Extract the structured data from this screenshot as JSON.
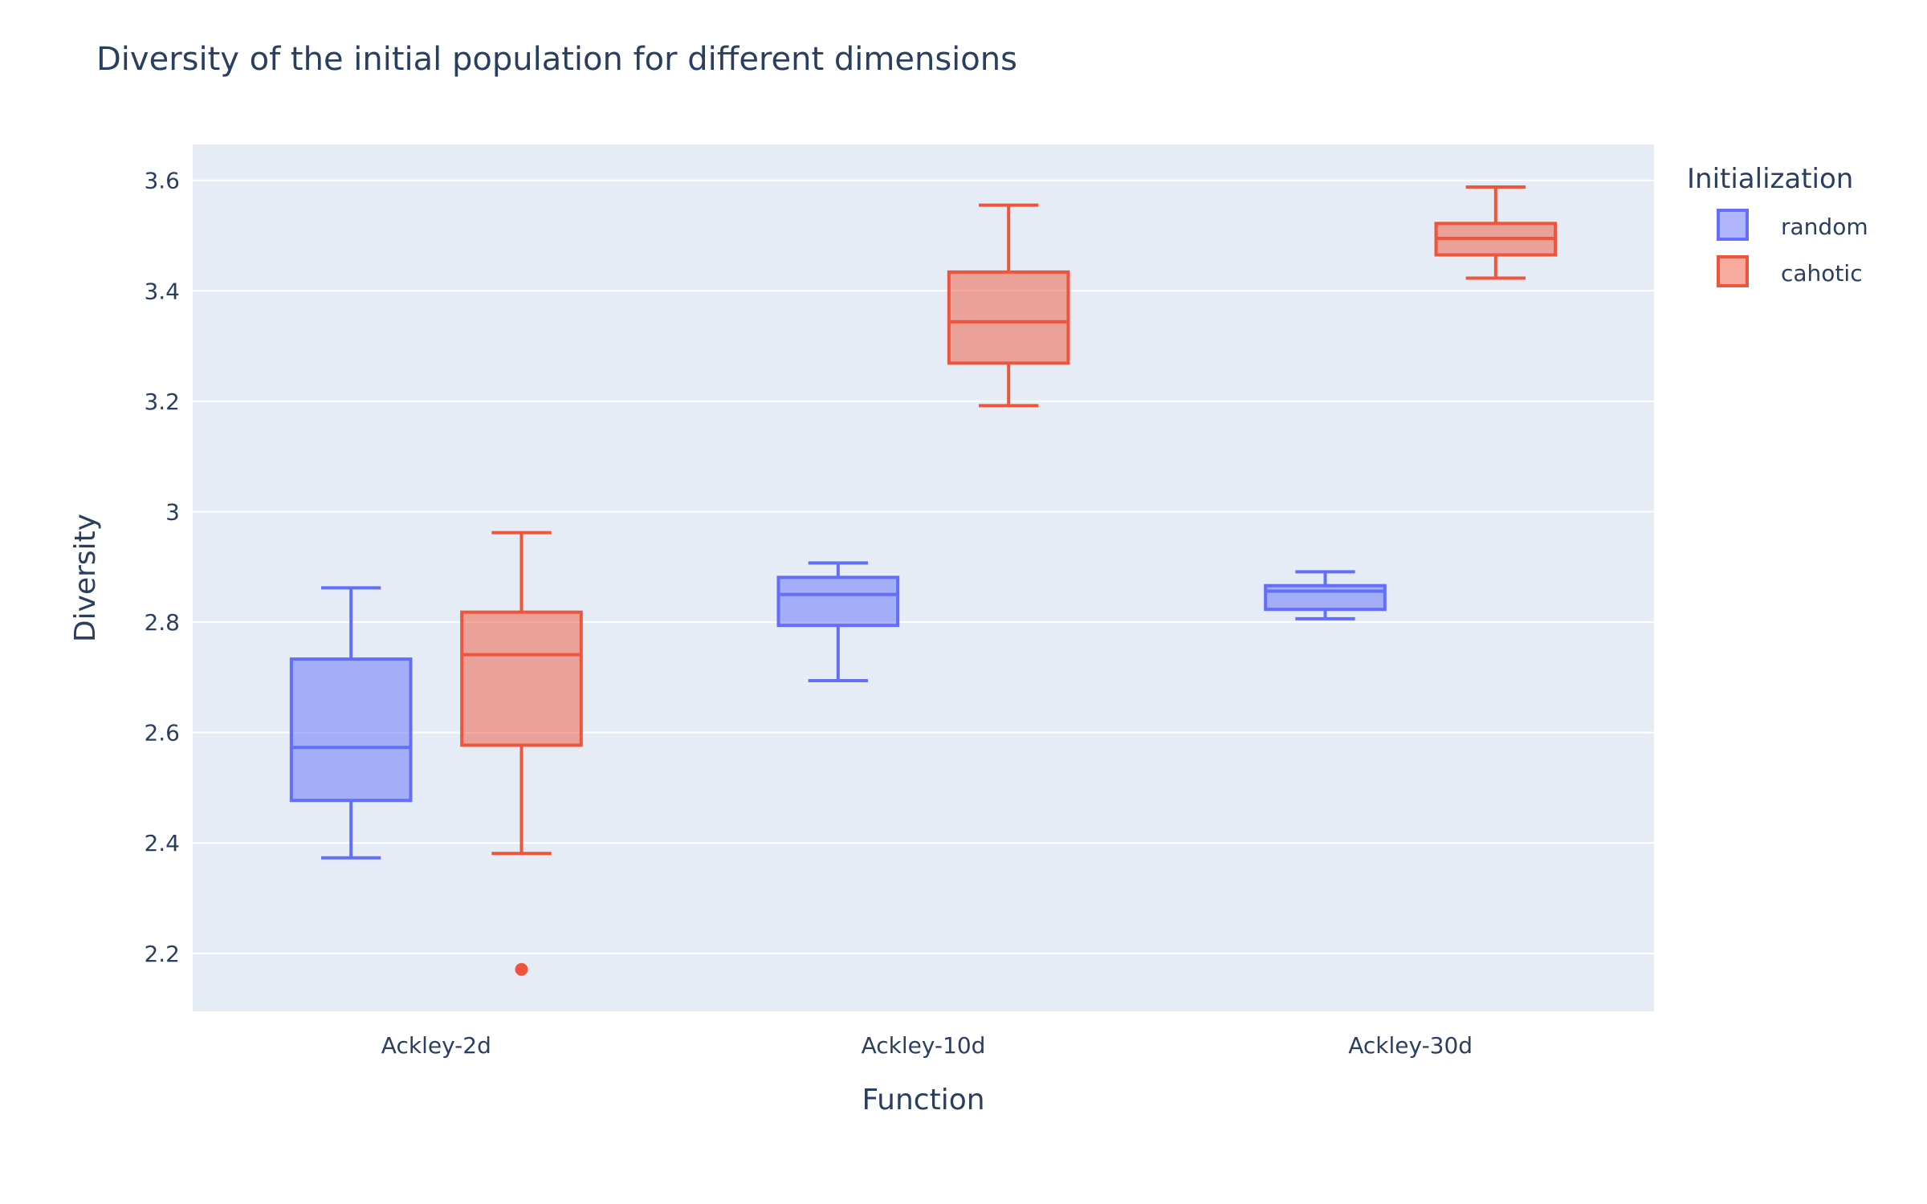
{
  "chart_data": {
    "type": "box",
    "title": "Diversity of the initial population for different dimensions",
    "xlabel": "Function",
    "ylabel": "Diversity",
    "categories": [
      "Ackley-2d",
      "Ackley-10d",
      "Ackley-30d"
    ],
    "ylim": [
      2.095,
      3.665
    ],
    "yticks": [
      2.2,
      2.4,
      2.6,
      2.8,
      3,
      3.2,
      3.4,
      3.6
    ],
    "ytick_labels": [
      "2.2",
      "2.4",
      "2.6",
      "2.8",
      "3",
      "3.2",
      "3.4",
      "3.6"
    ],
    "grid": true,
    "legend": {
      "title": "Initialization",
      "placement": "top-right"
    },
    "series": [
      {
        "name": "random",
        "color": "#636efa",
        "fill": "rgba(99,110,250,0.5)",
        "boxes": [
          {
            "min": 2.373,
            "q1": 2.477,
            "median": 2.573,
            "q3": 2.733,
            "max": 2.862,
            "outliers": []
          },
          {
            "min": 2.694,
            "q1": 2.794,
            "median": 2.85,
            "q3": 2.881,
            "max": 2.907,
            "outliers": []
          },
          {
            "min": 2.806,
            "q1": 2.823,
            "median": 2.856,
            "q3": 2.866,
            "max": 2.891,
            "outliers": []
          }
        ]
      },
      {
        "name": "cahotic",
        "color": "#ef553b",
        "fill": "rgba(239,85,59,0.5)",
        "boxes": [
          {
            "min": 2.381,
            "q1": 2.577,
            "median": 2.741,
            "q3": 2.818,
            "max": 2.962,
            "outliers": [
              2.171
            ]
          },
          {
            "min": 3.192,
            "q1": 3.269,
            "median": 3.344,
            "q3": 3.434,
            "max": 3.555,
            "outliers": []
          },
          {
            "min": 3.423,
            "q1": 3.465,
            "median": 3.495,
            "q3": 3.522,
            "max": 3.588,
            "outliers": []
          }
        ]
      }
    ]
  }
}
